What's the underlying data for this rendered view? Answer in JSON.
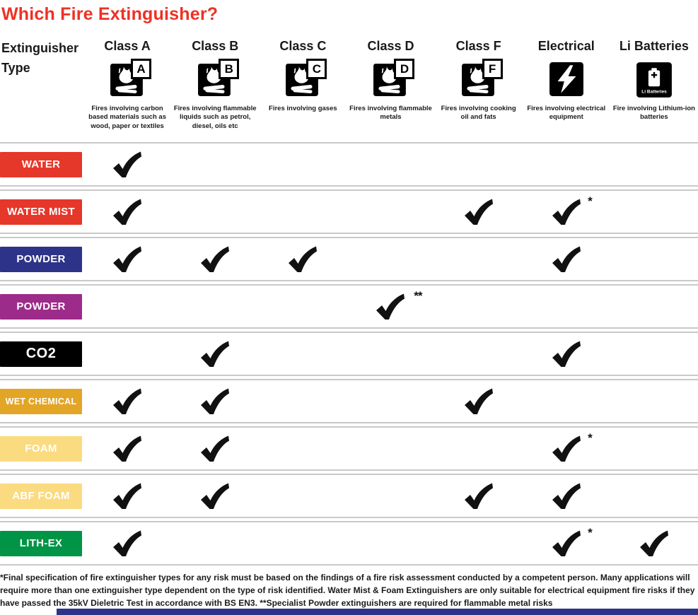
{
  "title": "Which Fire Extinguisher?",
  "row_header_label": "Extinguisher Type",
  "colors": {
    "title_red": "#ee3124",
    "grid_line": "#c9c9c9",
    "check": "#111111",
    "accent_bar": "#2d3389"
  },
  "columns": [
    {
      "id": "class-a",
      "label": "Class A",
      "icon": "fire-class-icon",
      "badge": "A",
      "caption": "Fires involving carbon based materials such as wood, paper or textiles"
    },
    {
      "id": "class-b",
      "label": "Class B",
      "icon": "fire-class-icon",
      "badge": "B",
      "caption": "Fires involving flammable liquids such as petrol, diesel, oils etc"
    },
    {
      "id": "class-c",
      "label": "Class C",
      "icon": "fire-class-icon",
      "badge": "C",
      "caption": "Fires involving gases"
    },
    {
      "id": "class-d",
      "label": "Class D",
      "icon": "fire-class-icon",
      "badge": "D",
      "caption": "Fires involving flammable metals"
    },
    {
      "id": "class-f",
      "label": "Class F",
      "icon": "fire-class-icon",
      "badge": "F",
      "caption": "Fires involving cooking oil and fats"
    },
    {
      "id": "electrical",
      "label": "Electrical",
      "icon": "lightning-bolt-icon",
      "caption": "Fires involving electrical equipment"
    },
    {
      "id": "li-batteries",
      "label": "Li Batteries",
      "icon": "battery-icon",
      "battery_label": "Li Batteries",
      "caption": "Fire involving Lithium-ion batteries"
    }
  ],
  "rows": [
    {
      "id": "water",
      "label": "WATER",
      "color": "#e6372b",
      "marks": {
        "class-a": ""
      }
    },
    {
      "id": "water-mist",
      "label": "WATER MIST",
      "color": "#e6372b",
      "marks": {
        "class-a": "",
        "class-f": "",
        "electrical": "*"
      }
    },
    {
      "id": "powder-abc",
      "label": "POWDER",
      "color": "#2d3389",
      "marks": {
        "class-a": "",
        "class-b": "",
        "class-c": "",
        "electrical": ""
      }
    },
    {
      "id": "powder-specialist",
      "label": "POWDER",
      "color": "#9d2b8a",
      "marks": {
        "class-d": "**"
      }
    },
    {
      "id": "co2",
      "label": "CO2",
      "color": "#000000",
      "marks": {
        "class-b": "",
        "electrical": ""
      }
    },
    {
      "id": "wet-chemical",
      "label": "WET CHEMICAL",
      "color": "#e2a526",
      "marks": {
        "class-a": "",
        "class-b": "",
        "class-f": ""
      }
    },
    {
      "id": "foam",
      "label": "FOAM",
      "color": "#fbdb7f",
      "marks": {
        "class-a": "",
        "class-b": "",
        "electrical": "*"
      }
    },
    {
      "id": "abf-foam",
      "label": "ABF FOAM",
      "color": "#fbdb7f",
      "marks": {
        "class-a": "",
        "class-b": "",
        "class-f": "",
        "electrical": ""
      }
    },
    {
      "id": "lith-ex",
      "label": "LITH-EX",
      "color": "#019447",
      "marks": {
        "class-a": "",
        "electrical": "*",
        "li-batteries": ""
      }
    }
  ],
  "footnote": "*Final specification of fire extinguisher types for any risk must be based on the findings of a fire risk assessment conducted by a competent person. Many applications will require more than one extinguisher type dependent on the type of risk identified. Water Mist & Foam Extinguishers are only suitable for electrical equipment fire risks if they have passed the 35kV Dieletric Test in accordance with BS EN3. **Specialist Powder extinguishers are required for flammable metal risks"
}
